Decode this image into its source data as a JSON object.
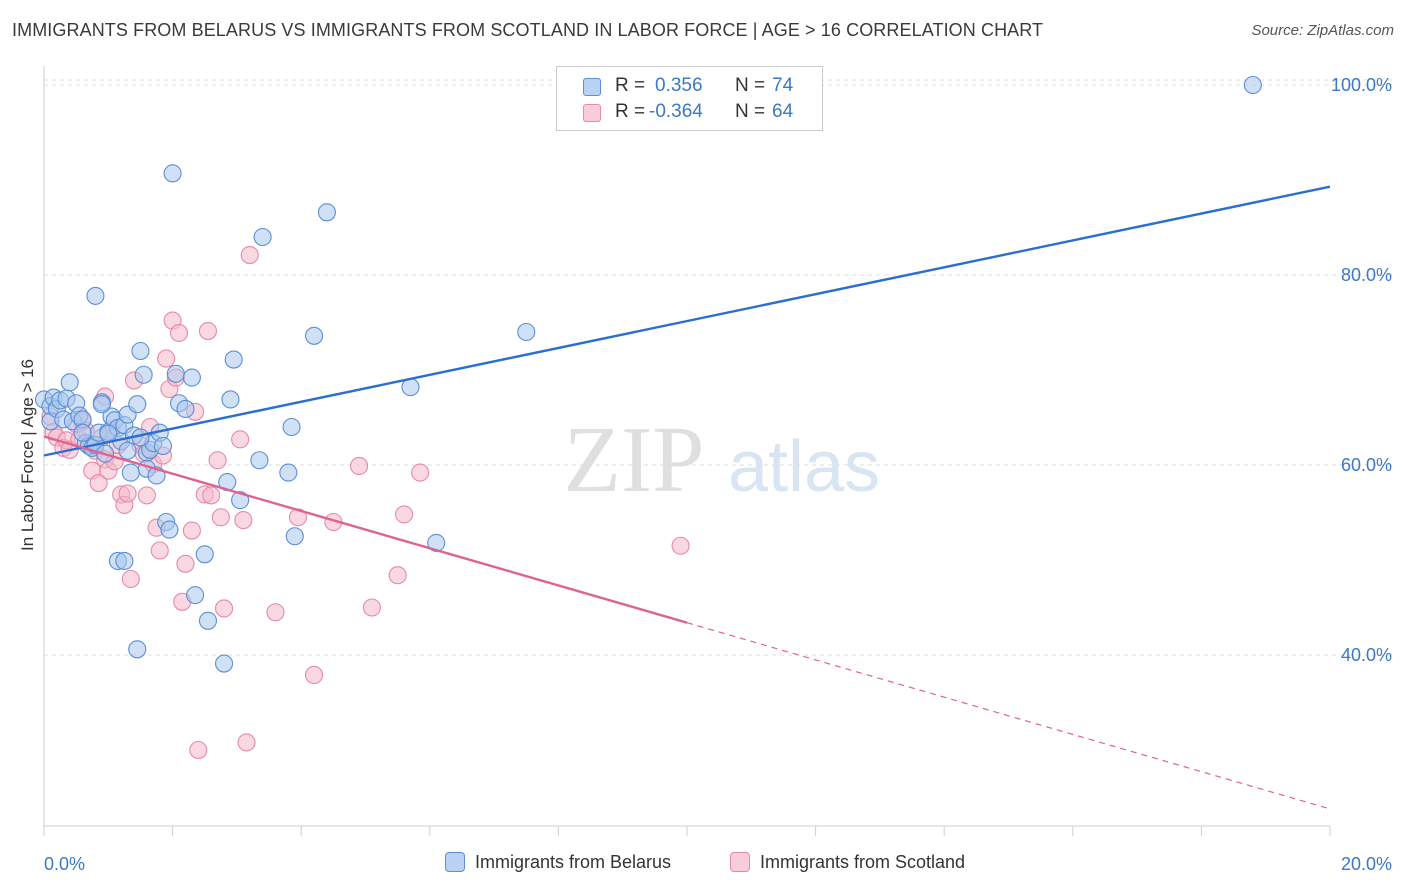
{
  "title": "IMMIGRANTS FROM BELARUS VS IMMIGRANTS FROM SCOTLAND IN LABOR FORCE | AGE > 16 CORRELATION CHART",
  "source": "Source: ZipAtlas.com",
  "watermark": {
    "zip": "ZIP",
    "atlas": "atlas"
  },
  "colors": {
    "belarus_fill": "#a9c8ef",
    "belarus_stroke": "#5b8fd6",
    "belarus_line": "#2a6fd0",
    "scotland_fill": "#f6b8cb",
    "scotland_stroke": "#e58aa8",
    "scotland_line": "#e0638f",
    "value_text": "#3a78c9"
  },
  "legend_top": {
    "rows": [
      {
        "r_label": "R =",
        "r_value": "0.356",
        "n_label": "N =",
        "n_value": "74"
      },
      {
        "r_label": "R =",
        "r_value": "-0.364",
        "n_label": "N =",
        "n_value": "64"
      }
    ]
  },
  "legend_bottom": {
    "belarus": "Immigrants from Belarus",
    "scotland": "Immigrants from Scotland"
  },
  "chart_data": {
    "type": "scatter",
    "title": "IMMIGRANTS FROM BELARUS VS IMMIGRANTS FROM SCOTLAND IN LABOR FORCE | AGE > 16 CORRELATION CHART",
    "xlabel": "",
    "ylabel": "In Labor Force | Age > 16",
    "xlim": [
      0,
      20
    ],
    "ylim": [
      22,
      102
    ],
    "x_tick_labels": [
      "0.0%",
      "20.0%"
    ],
    "y_ticks": [
      40,
      60,
      80,
      100
    ],
    "y_tick_labels": [
      "40.0%",
      "60.0%",
      "80.0%",
      "100.0%"
    ],
    "grid": "horizontal dashed",
    "legend_position": "top-center",
    "series": [
      {
        "name": "Immigrants from Belarus",
        "r": 0.356,
        "n": 74,
        "trend": {
          "x": [
            0,
            20
          ],
          "y": [
            61.0,
            89.3
          ],
          "dashed_from": null
        },
        "points": [
          [
            0.0,
            66.9
          ],
          [
            0.1,
            66.2
          ],
          [
            0.1,
            64.6
          ],
          [
            0.15,
            67.1
          ],
          [
            0.2,
            65.9
          ],
          [
            0.25,
            66.8
          ],
          [
            0.3,
            64.8
          ],
          [
            0.35,
            67.0
          ],
          [
            0.4,
            68.7
          ],
          [
            0.45,
            64.6
          ],
          [
            0.5,
            66.5
          ],
          [
            0.55,
            65.2
          ],
          [
            0.6,
            64.8
          ],
          [
            0.65,
            62.3
          ],
          [
            0.7,
            62.0
          ],
          [
            0.75,
            61.8
          ],
          [
            0.8,
            62.1
          ],
          [
            0.85,
            63.4
          ],
          [
            0.8,
            77.8
          ],
          [
            0.9,
            66.6
          ],
          [
            0.95,
            61.2
          ],
          [
            1.0,
            63.5
          ],
          [
            1.05,
            65.1
          ],
          [
            1.1,
            64.7
          ],
          [
            1.15,
            63.9
          ],
          [
            1.2,
            62.5
          ],
          [
            1.25,
            64.2
          ],
          [
            1.3,
            65.3
          ],
          [
            1.35,
            59.2
          ],
          [
            1.4,
            63.1
          ],
          [
            1.45,
            66.4
          ],
          [
            1.5,
            72.0
          ],
          [
            1.55,
            69.5
          ],
          [
            1.6,
            61.3
          ],
          [
            1.6,
            59.6
          ],
          [
            1.65,
            61.6
          ],
          [
            1.7,
            62.3
          ],
          [
            1.75,
            58.9
          ],
          [
            1.8,
            63.4
          ],
          [
            1.85,
            62.0
          ],
          [
            1.9,
            54.0
          ],
          [
            1.95,
            53.2
          ],
          [
            2.05,
            69.6
          ],
          [
            2.1,
            66.5
          ],
          [
            2.2,
            65.9
          ],
          [
            2.3,
            69.2
          ],
          [
            1.15,
            49.9
          ],
          [
            1.25,
            49.9
          ],
          [
            1.45,
            40.6
          ],
          [
            2.35,
            46.3
          ],
          [
            2.5,
            50.6
          ],
          [
            2.55,
            43.6
          ],
          [
            2.8,
            39.1
          ],
          [
            2.85,
            58.2
          ],
          [
            2.9,
            66.9
          ],
          [
            2.95,
            71.1
          ],
          [
            3.05,
            56.3
          ],
          [
            3.35,
            60.5
          ],
          [
            3.4,
            84.0
          ],
          [
            3.8,
            59.2
          ],
          [
            3.85,
            64.0
          ],
          [
            3.9,
            52.5
          ],
          [
            4.2,
            73.6
          ],
          [
            4.4,
            86.6
          ],
          [
            5.7,
            68.2
          ],
          [
            6.1,
            51.8
          ],
          [
            7.5,
            74.0
          ],
          [
            1.5,
            62.9
          ],
          [
            2.0,
            90.7
          ],
          [
            1.0,
            63.3
          ],
          [
            0.6,
            63.4
          ],
          [
            0.9,
            66.4
          ],
          [
            1.3,
            61.5
          ],
          [
            18.8,
            100.0
          ]
        ]
      },
      {
        "name": "Immigrants from Scotland",
        "r": -0.364,
        "n": 64,
        "trend": {
          "x": [
            0,
            20
          ],
          "y": [
            63.0,
            23.8
          ],
          "dashed_from": 10.0
        },
        "points": [
          [
            0.1,
            65.1
          ],
          [
            0.15,
            63.5
          ],
          [
            0.2,
            62.9
          ],
          [
            0.3,
            61.8
          ],
          [
            0.35,
            62.6
          ],
          [
            0.4,
            61.6
          ],
          [
            0.5,
            64.3
          ],
          [
            0.55,
            62.7
          ],
          [
            0.6,
            64.6
          ],
          [
            0.65,
            63.6
          ],
          [
            0.7,
            62.2
          ],
          [
            0.75,
            59.4
          ],
          [
            0.8,
            61.5
          ],
          [
            0.85,
            58.1
          ],
          [
            0.9,
            62.9
          ],
          [
            0.95,
            60.6
          ],
          [
            1.0,
            59.4
          ],
          [
            1.05,
            63.7
          ],
          [
            1.1,
            60.4
          ],
          [
            1.15,
            62.1
          ],
          [
            1.2,
            56.9
          ],
          [
            1.25,
            55.8
          ],
          [
            1.3,
            57.0
          ],
          [
            1.35,
            48.0
          ],
          [
            1.4,
            68.9
          ],
          [
            1.5,
            62.1
          ],
          [
            1.55,
            61.2
          ],
          [
            1.6,
            56.8
          ],
          [
            1.65,
            64.0
          ],
          [
            1.7,
            60.1
          ],
          [
            1.75,
            53.4
          ],
          [
            1.8,
            51.0
          ],
          [
            1.85,
            61.0
          ],
          [
            1.9,
            71.2
          ],
          [
            1.95,
            68.0
          ],
          [
            2.0,
            75.2
          ],
          [
            2.05,
            69.2
          ],
          [
            2.1,
            73.9
          ],
          [
            2.15,
            45.6
          ],
          [
            2.2,
            49.6
          ],
          [
            2.3,
            53.1
          ],
          [
            2.35,
            65.6
          ],
          [
            2.4,
            30.0
          ],
          [
            2.5,
            56.9
          ],
          [
            2.55,
            74.1
          ],
          [
            2.6,
            56.8
          ],
          [
            2.7,
            60.5
          ],
          [
            2.75,
            54.5
          ],
          [
            2.8,
            44.9
          ],
          [
            3.05,
            62.7
          ],
          [
            3.1,
            54.2
          ],
          [
            3.15,
            30.8
          ],
          [
            3.2,
            82.1
          ],
          [
            3.6,
            44.5
          ],
          [
            3.95,
            54.5
          ],
          [
            4.2,
            37.9
          ],
          [
            4.5,
            54.0
          ],
          [
            4.9,
            59.9
          ],
          [
            5.1,
            45.0
          ],
          [
            5.5,
            48.4
          ],
          [
            5.6,
            54.8
          ],
          [
            5.85,
            59.2
          ],
          [
            9.9,
            51.5
          ],
          [
            0.95,
            67.2
          ]
        ]
      }
    ]
  }
}
